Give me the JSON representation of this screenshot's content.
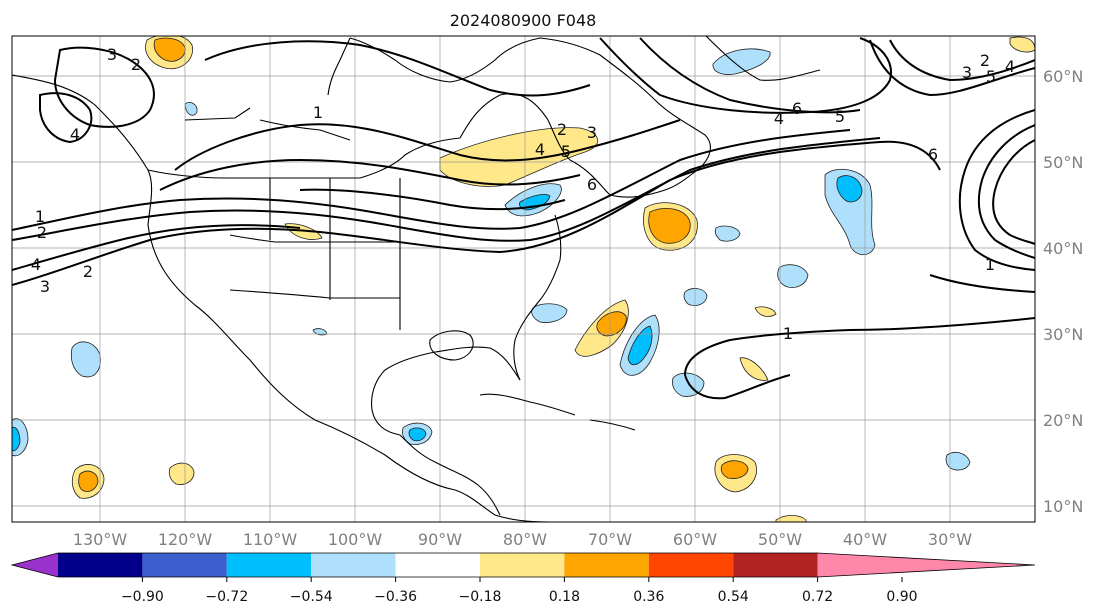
{
  "title": "2024080900 F048",
  "longitude_labels": [
    "130°W",
    "120°W",
    "110°W",
    "100°W",
    "90°W",
    "80°W",
    "70°W",
    "60°W",
    "50°W",
    "40°W",
    "30°W"
  ],
  "latitude_labels": [
    "60°N",
    "50°N",
    "40°N",
    "30°N",
    "20°N",
    "10°N"
  ],
  "colorbar": {
    "colors": [
      "#9932cc",
      "#00008b",
      "#3a5fcd",
      "#00bfff",
      "#aee0fb",
      "#ffffff",
      "#ffe88a",
      "#ffa500",
      "#ff4500",
      "#b22222",
      "#ff88aa"
    ],
    "tick_labels": [
      "−0.90",
      "−0.72",
      "−0.54",
      "−0.36",
      "−0.18",
      "0.18",
      "0.36",
      "0.54",
      "0.72",
      "0.90"
    ]
  },
  "contour_labels": [
    "1",
    "2",
    "3",
    "4",
    "5",
    "6"
  ],
  "shading_colors": {
    "light_blue": "#aee0fb",
    "blue": "#00bfff",
    "light_yellow": "#ffe88a",
    "orange": "#ffa500"
  }
}
